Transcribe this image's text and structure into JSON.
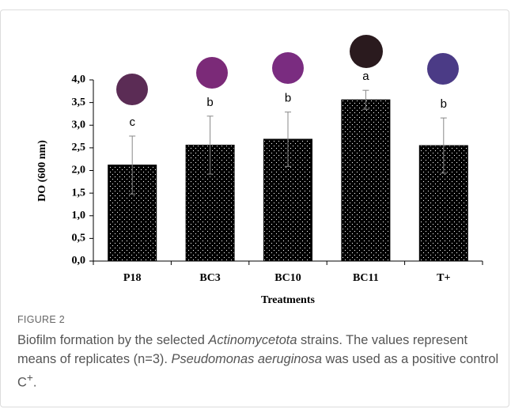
{
  "chart_data": {
    "type": "bar",
    "categories": [
      "P18",
      "BC3",
      "BC10",
      "BC11",
      "T+"
    ],
    "values": [
      2.12,
      2.56,
      2.69,
      3.56,
      2.55
    ],
    "errors": [
      0.64,
      0.64,
      0.6,
      0.21,
      0.61
    ],
    "annotations": [
      "c",
      "b",
      "b",
      "a",
      "b"
    ],
    "color": "#000000",
    "ylim": [
      0,
      4.0
    ],
    "yticks": [
      {
        "value": 0,
        "label": "0,0"
      },
      {
        "value": 0.5,
        "label": "0,5"
      },
      {
        "value": 1.0,
        "label": "1,0"
      },
      {
        "value": 1.5,
        "label": "1,5"
      },
      {
        "value": 2.0,
        "label": "2,0"
      },
      {
        "value": 2.5,
        "label": "2,5"
      },
      {
        "value": 3.0,
        "label": "3,0"
      },
      {
        "value": 3.5,
        "label": "3,5"
      },
      {
        "value": 4.0,
        "label": "4,0"
      }
    ],
    "y_label": "DO (600 nm)",
    "x_label": "Treatments",
    "grid": false
  },
  "caption": {
    "figure_label": "FIGURE 2",
    "parts": [
      "Biofilm formation by the selected ",
      "Actinomycetota",
      " strains. The values represent means of replicates (n=3). ",
      "Pseudomonas aeruginosa",
      " was used as a positive control C",
      "+",
      "."
    ]
  }
}
